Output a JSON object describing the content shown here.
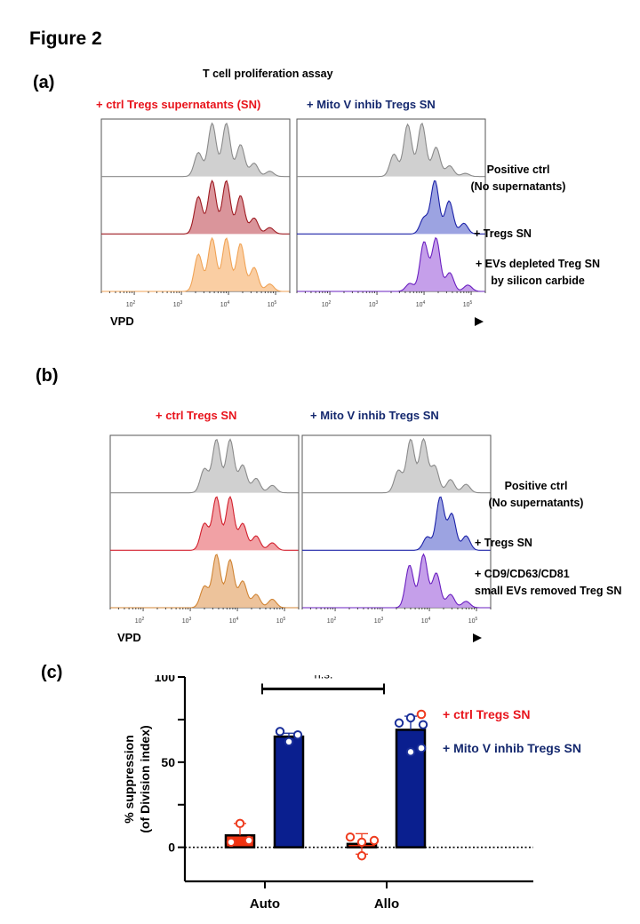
{
  "figure_title": "Figure 2",
  "panels": {
    "a": {
      "label": "(a)",
      "assay_title": "T cell proliferation assay",
      "left_title": "+ ctrl Tregs supernatants (SN)",
      "right_title": "+ Mito V inhib Tregs SN",
      "row_labels": [
        [
          "Positive ctrl",
          "(No supernatants)"
        ],
        [
          "+ Tregs SN"
        ],
        [
          "+ EVs depleted Treg SN",
          "by silicon carbide"
        ]
      ],
      "xaxis_label": "VPD"
    },
    "b": {
      "label": "(b)",
      "left_title": "+ ctrl Tregs SN",
      "right_title": "+ Mito V inhib Tregs SN",
      "row_labels": [
        [
          "Positive ctrl",
          "(No supernatants)"
        ],
        [
          "+ Tregs SN"
        ],
        [
          "+ CD9/CD63/CD81",
          "small EVs removed Treg SN"
        ]
      ],
      "xaxis_label": "VPD"
    },
    "c": {
      "label": "(c)"
    }
  },
  "colors": {
    "red_title": "#e8141c",
    "navy_title": "#14286e",
    "grey_fill": "#c8c8c8",
    "grey_line": "#8a8a8a",
    "darkred_fill": "#d4828a",
    "darkred_line": "#9e1b22",
    "orange_fill": "#f9c593",
    "orange_line": "#f0a356",
    "red_fill": "#ef9195",
    "red_line": "#d21f2c",
    "tan_fill": "#eab98a",
    "tan_line": "#d08434",
    "blue_fill": "#8b93dc",
    "blue_line": "#1c22a8",
    "purple_fill": "#bb8ee6",
    "purple_line": "#6a1fc0",
    "bar_red": "#f2320f",
    "bar_navy": "#0a1f8f"
  },
  "chart_data": [
    {
      "type": "area",
      "name": "panel-a-left",
      "title": "+ ctrl Tregs supernatants (SN)",
      "xlabel": "VPD",
      "xscale": "log",
      "xlim": [
        20,
        200000
      ],
      "xticks": [
        "10^2",
        "10^3",
        "10^4",
        "10^5"
      ],
      "series": [
        {
          "name": "Positive ctrl (No supernatants)",
          "color_key": "grey",
          "peaks": [
            [
              2300,
              0.45
            ],
            [
              4500,
              1.0
            ],
            [
              9000,
              1.0
            ],
            [
              18000,
              0.6
            ],
            [
              35000,
              0.25
            ],
            [
              75000,
              0.1
            ]
          ]
        },
        {
          "name": "+ Tregs SN",
          "color_key": "darkred",
          "peaks": [
            [
              2300,
              0.7
            ],
            [
              4500,
              1.0
            ],
            [
              9000,
              1.0
            ],
            [
              18000,
              0.72
            ],
            [
              35000,
              0.3
            ],
            [
              75000,
              0.12
            ]
          ]
        },
        {
          "name": "+ EVs depleted Treg SN by silicon carbide",
          "color_key": "orange",
          "peaks": [
            [
              2300,
              0.7
            ],
            [
              4500,
              1.0
            ],
            [
              9000,
              1.0
            ],
            [
              18000,
              0.9
            ],
            [
              35000,
              0.45
            ],
            [
              75000,
              0.14
            ]
          ]
        }
      ]
    },
    {
      "type": "area",
      "name": "panel-a-right",
      "title": "+ Mito V inhib Tregs SN",
      "xlabel": "VPD",
      "xscale": "log",
      "xlim": [
        20,
        200000
      ],
      "xticks": [
        "10^2",
        "10^3",
        "10^4",
        "10^5"
      ],
      "series": [
        {
          "name": "Positive ctrl (No supernatants)",
          "color_key": "grey",
          "peaks": [
            [
              2300,
              0.42
            ],
            [
              4500,
              0.98
            ],
            [
              9000,
              1.0
            ],
            [
              18000,
              0.55
            ],
            [
              35000,
              0.2
            ],
            [
              75000,
              0.06
            ]
          ]
        },
        {
          "name": "+ Tregs SN",
          "color_key": "blue",
          "peaks": [
            [
              10000,
              0.3
            ],
            [
              17000,
              1.0
            ],
            [
              34000,
              0.62
            ],
            [
              70000,
              0.2
            ]
          ]
        },
        {
          "name": "+ EVs depleted Treg SN by silicon carbide",
          "color_key": "purple",
          "peaks": [
            [
              5000,
              0.15
            ],
            [
              10000,
              0.93
            ],
            [
              18000,
              1.0
            ],
            [
              35000,
              0.35
            ],
            [
              85000,
              0.12
            ]
          ]
        }
      ]
    },
    {
      "type": "area",
      "name": "panel-b-left",
      "title": "+ ctrl Tregs SN",
      "xlabel": "VPD",
      "xscale": "log",
      "xlim": [
        20,
        200000
      ],
      "xticks": [
        "10^2",
        "10^3",
        "10^4",
        "10^5"
      ],
      "series": [
        {
          "name": "Positive ctrl (No supernatants)",
          "color_key": "grey",
          "peaks": [
            [
              2000,
              0.45
            ],
            [
              3600,
              1.0
            ],
            [
              7000,
              1.0
            ],
            [
              13000,
              0.52
            ],
            [
              25000,
              0.27
            ],
            [
              55000,
              0.14
            ]
          ]
        },
        {
          "name": "+ Tregs SN",
          "color_key": "red",
          "peaks": [
            [
              2000,
              0.5
            ],
            [
              3600,
              1.0
            ],
            [
              7000,
              1.0
            ],
            [
              13000,
              0.5
            ],
            [
              25000,
              0.27
            ],
            [
              55000,
              0.14
            ]
          ]
        },
        {
          "name": "+ CD9/CD63/CD81 small EVs removed Treg SN",
          "color_key": "tan",
          "peaks": [
            [
              2000,
              0.4
            ],
            [
              3600,
              1.0
            ],
            [
              7000,
              0.9
            ],
            [
              13000,
              0.5
            ],
            [
              25000,
              0.25
            ],
            [
              55000,
              0.16
            ]
          ]
        }
      ]
    },
    {
      "type": "area",
      "name": "panel-b-right",
      "title": "+ Mito V inhib Tregs SN",
      "xlabel": "VPD",
      "xscale": "log",
      "xlim": [
        20,
        200000
      ],
      "xticks": [
        "10^2",
        "10^3",
        "10^4",
        "10^5"
      ],
      "series": [
        {
          "name": "Positive ctrl (No supernatants)",
          "color_key": "grey",
          "peaks": [
            [
              2200,
              0.42
            ],
            [
              4000,
              1.0
            ],
            [
              7500,
              1.0
            ],
            [
              13000,
              0.5
            ],
            [
              28000,
              0.25
            ],
            [
              60000,
              0.16
            ]
          ]
        },
        {
          "name": "+ Tregs SN",
          "color_key": "blue",
          "peaks": [
            [
              9000,
              0.25
            ],
            [
              17000,
              1.0
            ],
            [
              30000,
              0.68
            ],
            [
              60000,
              0.27
            ]
          ]
        },
        {
          "name": "+ CD9/CD63/CD81 small EVs removed Treg SN",
          "color_key": "purple",
          "peaks": [
            [
              3800,
              0.8
            ],
            [
              7500,
              1.0
            ],
            [
              14000,
              0.65
            ],
            [
              28000,
              0.25
            ],
            [
              60000,
              0.12
            ]
          ]
        }
      ]
    },
    {
      "type": "bar",
      "name": "panel-c-suppression",
      "ylabel": "% suppression (of  Division index)",
      "xlabel": "",
      "categories": [
        "Auto",
        "Allo"
      ],
      "ylim": [
        -20,
        100
      ],
      "yticks": [
        0,
        50,
        100
      ],
      "reference_line": 0,
      "significance": {
        "label": "n.s.",
        "from": "Auto",
        "to": "Allo"
      },
      "legend_position": "right",
      "series": [
        {
          "name": "+ ctrl Tregs SN",
          "color_key": "bar_red",
          "legend_color": "#e8141c",
          "values": [
            7,
            2
          ],
          "errors": [
            7,
            6
          ],
          "points": [
            [
              3,
              4,
              14
            ],
            [
              6,
              3,
              4,
              -5
            ]
          ]
        },
        {
          "name": "+ Mito V inhib Tregs SN",
          "color_key": "bar_navy",
          "legend_color": "#14286e",
          "values": [
            65,
            69
          ],
          "errors": [
            2,
            8
          ],
          "points": [
            [
              68,
              66,
              62
            ],
            [
              73,
              76,
              72,
              56
            ]
          ]
        }
      ]
    }
  ]
}
